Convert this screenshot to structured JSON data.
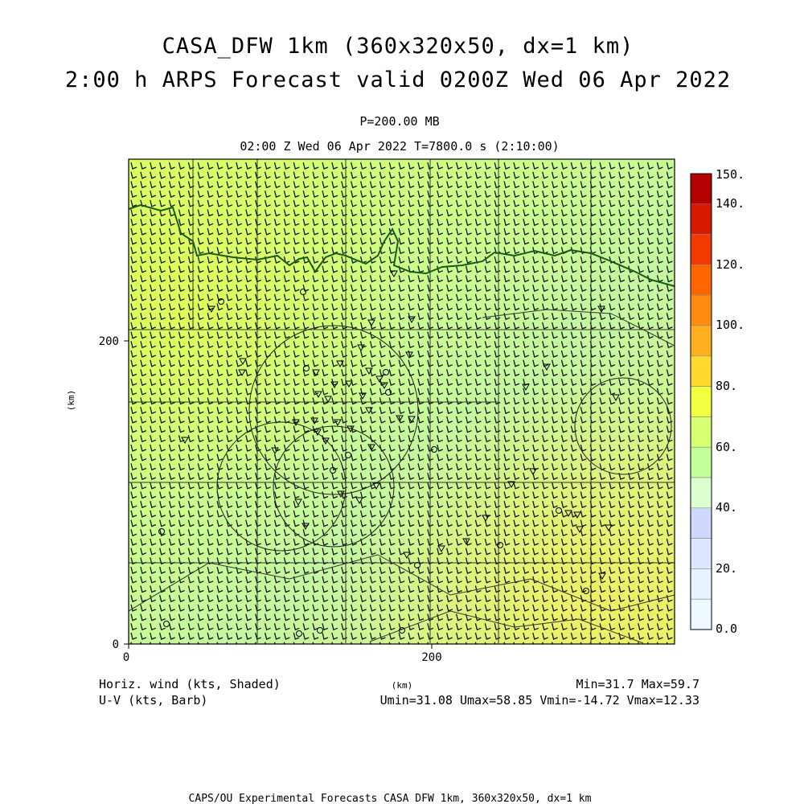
{
  "header": {
    "title_line1": "CASA_DFW 1km (360x320x50, dx=1 km)",
    "title_line2": "2:00 h ARPS Forecast valid 0200Z Wed 06 Apr 2022",
    "pressure_level": "P=200.00 MB",
    "time_line": "02:00 Z Wed 06 Apr 2022   T=7800.0 s (2:10:00)"
  },
  "axes": {
    "y_label": "(km)",
    "x_label": "(km)",
    "x_ticks": [
      "0",
      "200"
    ],
    "y_ticks": [
      "0",
      "200"
    ]
  },
  "colorbar": {
    "labels": [
      "150.",
      "140.",
      "120.",
      "100.",
      "80.",
      "60.",
      "40.",
      "20.",
      "0.0"
    ],
    "colors": [
      "#b30000",
      "#d81a00",
      "#f03a00",
      "#ff6600",
      "#ff8c10",
      "#ffb020",
      "#ffd830",
      "#f0ff40",
      "#d8ff70",
      "#c2ff99",
      "#dcffd0",
      "#d0d8ff",
      "#dde8ff",
      "#e6f2ff",
      "#eef8ff"
    ]
  },
  "footer": {
    "left_line1": "Horiz. wind (kts, Shaded)",
    "left_line2": "U-V (kts, Barb)",
    "minmax": "Min=31.7 Max=59.7",
    "uv_stats": "Umin=31.08 Umax=58.85 Vmin=-14.72 Vmax=12.33",
    "credit": "CAPS/OU Experimental Forecasts  CASA DFW 1km, 360x320x50, dx=1 km"
  },
  "field": {
    "min": 31.7,
    "max": 59.7,
    "units": "kts"
  }
}
